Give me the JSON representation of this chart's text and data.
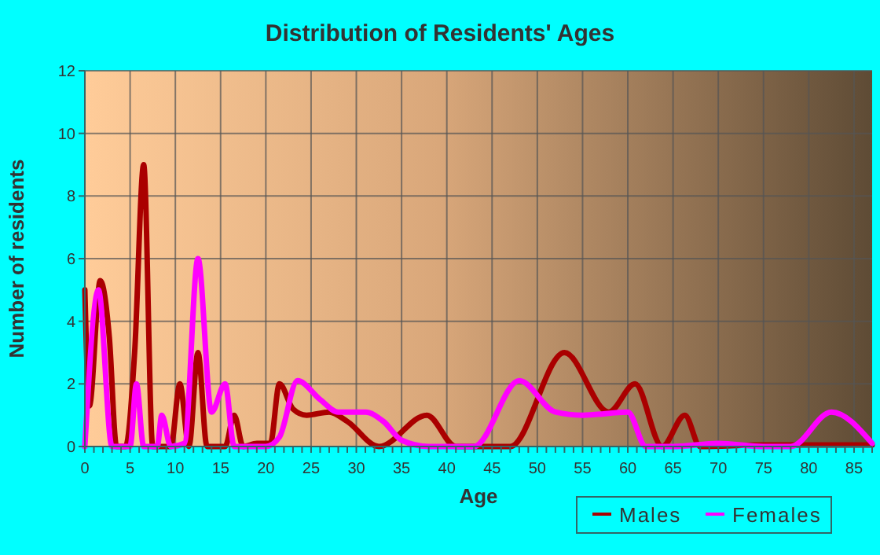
{
  "chart_data": {
    "type": "line",
    "title": "Distribution of Residents' Ages",
    "xlabel": "Age",
    "ylabel": "Number of residents",
    "xlim": [
      0,
      87
    ],
    "xticks": [
      0,
      5,
      10,
      15,
      20,
      25,
      30,
      35,
      40,
      45,
      50,
      55,
      60,
      65,
      70,
      75,
      80,
      85
    ],
    "ylim": [
      0,
      12
    ],
    "yticks": [
      0,
      2,
      4,
      6,
      8,
      10,
      12
    ],
    "grid": true,
    "legend": "bottom",
    "line_style": "solid",
    "series": [
      {
        "name": "Males",
        "color": "#aa0000",
        "x": [
          0,
          0.5,
          1.7,
          2.7,
          3.5,
          4.5,
          5.5,
          6.5,
          7.5,
          8.5,
          9.5,
          10.5,
          11.5,
          12.5,
          13.5,
          14.5,
          15.5,
          16.5,
          17.5,
          19,
          20.5,
          21.5,
          23,
          24.5,
          27,
          29,
          32.5,
          37.8,
          41,
          45,
          47,
          53,
          57.9,
          60.8,
          63.8,
          66.3,
          68,
          75,
          87
        ],
        "values": [
          5,
          1.3,
          5.3,
          3.5,
          0,
          0,
          3,
          9,
          0,
          0,
          0,
          2,
          0,
          3,
          0,
          0,
          0,
          1,
          0,
          0.1,
          0.1,
          2,
          1.2,
          1,
          1.1,
          0.8,
          0,
          1,
          0,
          0,
          0,
          3,
          1.1,
          2,
          0,
          1,
          0,
          0.05,
          0.05
        ]
      },
      {
        "name": "Females",
        "color": "#ff00ff",
        "x": [
          0,
          1.5,
          3,
          5,
          5.7,
          6.5,
          8,
          8.5,
          9.5,
          11,
          12.5,
          14,
          15.5,
          16.5,
          20,
          21.5,
          23.5,
          26,
          28,
          31,
          33,
          35,
          38,
          43,
          48,
          52,
          55,
          60,
          62,
          65,
          70,
          75,
          78,
          82.5,
          87
        ],
        "values": [
          0,
          5,
          0,
          0,
          2,
          0,
          0,
          1,
          0,
          0.1,
          6,
          1.1,
          2,
          0,
          0,
          0.3,
          2.1,
          1.5,
          1.1,
          1.1,
          0.8,
          0.2,
          0,
          0,
          2.1,
          1.1,
          1,
          1.1,
          0,
          0,
          0.1,
          0,
          0,
          1.1,
          0.1
        ]
      }
    ]
  }
}
